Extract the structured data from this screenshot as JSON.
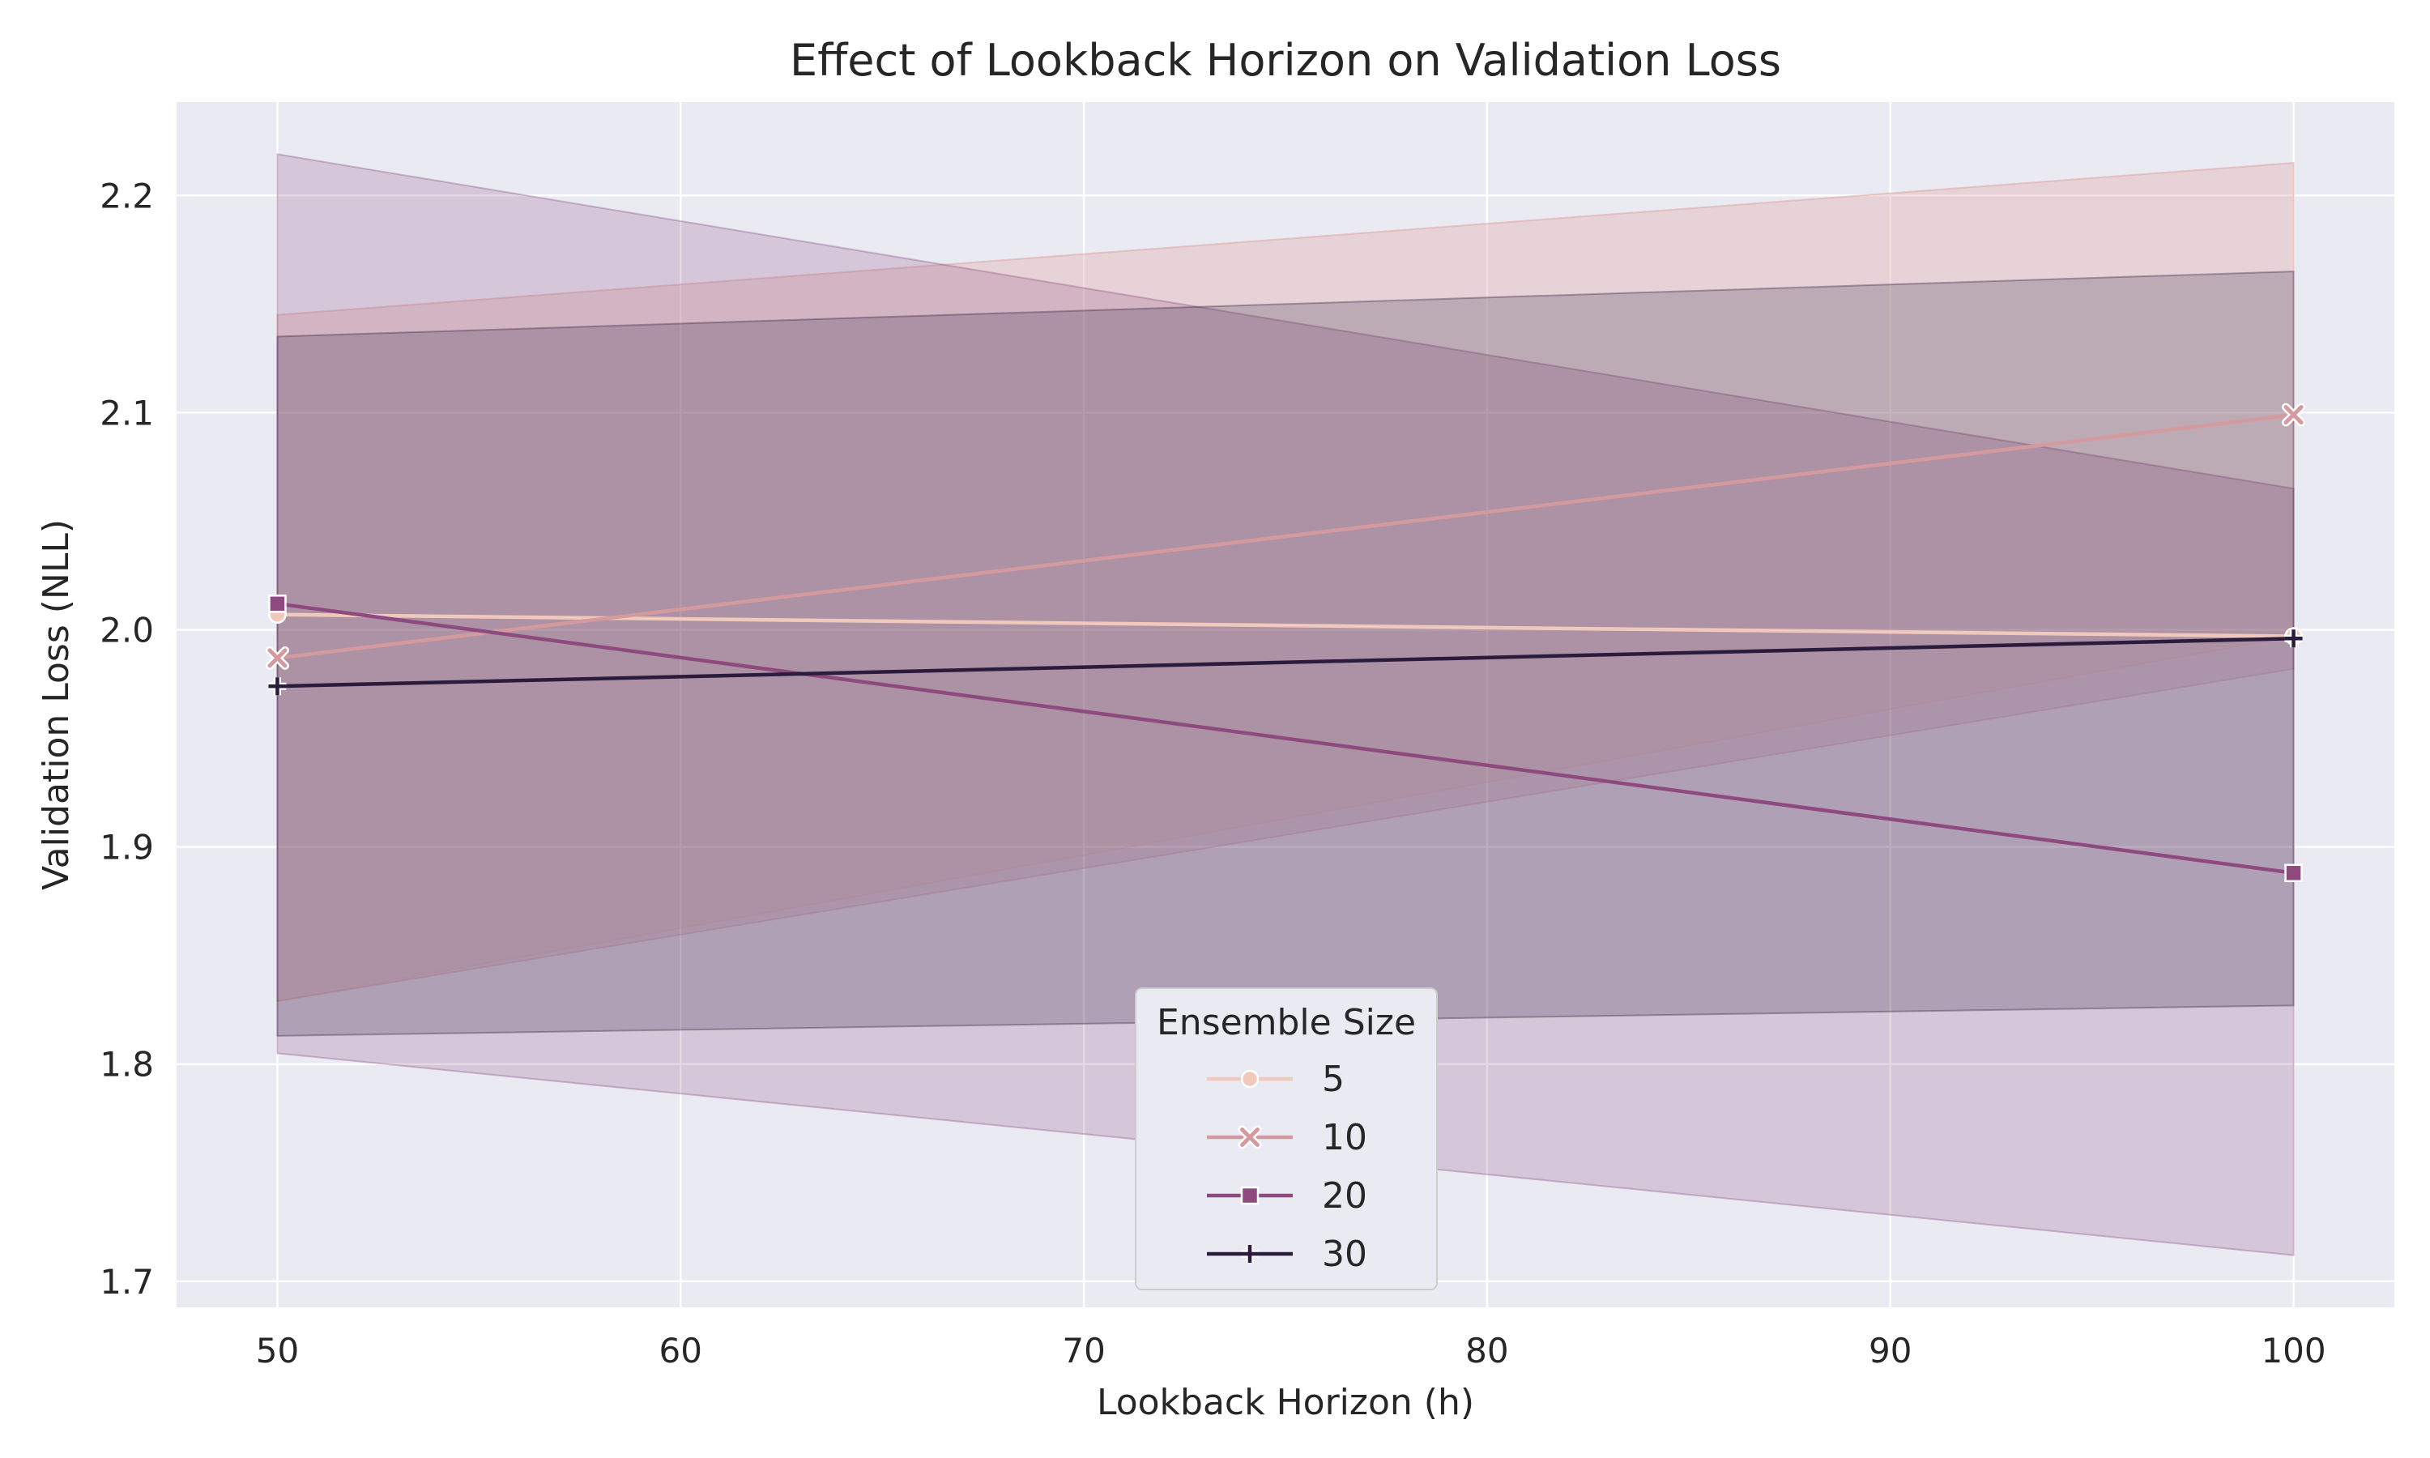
{
  "chart_data": {
    "type": "line",
    "title": "Effect of Lookback Horizon on Validation Loss",
    "xlabel": "Lookback Horizon (h)",
    "ylabel": "Validation Loss (NLL)",
    "x": [
      50,
      100
    ],
    "xlim": [
      47.5,
      102.5
    ],
    "ylim": [
      1.688,
      2.243
    ],
    "xticks": [
      50,
      60,
      70,
      80,
      90,
      100
    ],
    "yticks": [
      1.7,
      1.8,
      1.9,
      2.0,
      2.1,
      2.2
    ],
    "grid": true,
    "legend": {
      "title": "Ensemble Size",
      "placement": "bottom-center"
    },
    "series": [
      {
        "name": "5",
        "marker": "circle",
        "color": "#f0c9bd",
        "values": [
          2.007,
          1.997
        ],
        "ci_low": [
          1.829,
          1.997
        ],
        "ci_high": [
          2.145,
          2.215
        ]
      },
      {
        "name": "10",
        "marker": "x",
        "color": "#d49a9e",
        "values": [
          1.987,
          2.099
        ],
        "ci_low": [
          1.829,
          1.982
        ],
        "ci_high": [
          2.145,
          2.215
        ]
      },
      {
        "name": "20",
        "marker": "square",
        "color": "#8e4a7f",
        "values": [
          2.012,
          1.888
        ],
        "ci_low": [
          1.805,
          1.712
        ],
        "ci_high": [
          2.219,
          2.065
        ]
      },
      {
        "name": "30",
        "marker": "plus",
        "color": "#2b1c3d",
        "values": [
          1.974,
          1.996
        ],
        "ci_low": [
          1.813,
          1.827
        ],
        "ci_high": [
          2.135,
          2.165
        ]
      }
    ]
  }
}
